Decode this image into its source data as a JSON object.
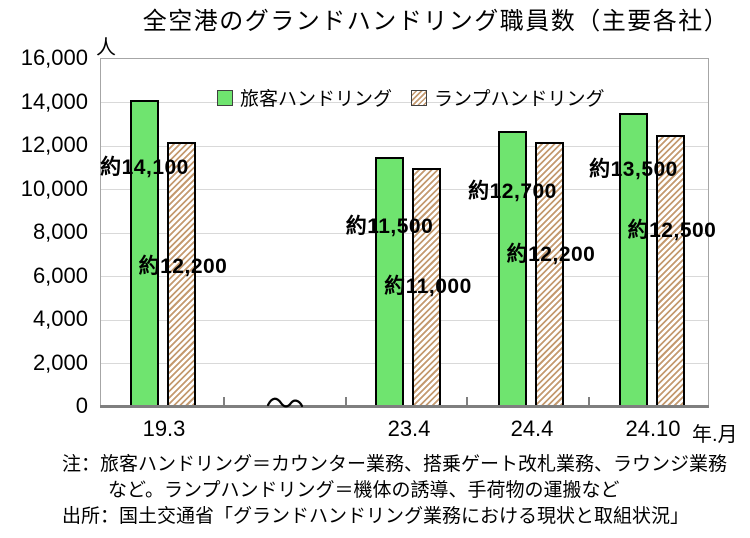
{
  "title": "全空港のグランドハンドリング職員数（主要各社）",
  "y_axis": {
    "unit": "人",
    "tick_labels": [
      "16,000",
      "14,000",
      "12,000",
      "10,000",
      "8,000",
      "6,000",
      "4,000",
      "2,000",
      "0"
    ]
  },
  "x_axis": {
    "unit": "年.月",
    "labels": [
      "19.3",
      "23.4",
      "24.4",
      "24.10"
    ]
  },
  "chart_data": {
    "type": "bar",
    "title": "全空港のグランドハンドリング職員数（主要各社）",
    "categories": [
      "19.3",
      "23.4",
      "24.4",
      "24.10"
    ],
    "x_axis_unit": "年.月",
    "y_axis_unit": "人",
    "ylim": [
      0,
      16000
    ],
    "ytick_step": 2000,
    "grid": true,
    "legend_position": "top-inside",
    "x_axis_break": "wavy break mark on axis between 19.3 and 23.4",
    "series": [
      {
        "name": "旅客ハンドリング",
        "fill": "solid",
        "color": "#6FE46F",
        "values": [
          14100,
          11500,
          12700,
          13500
        ],
        "value_labels": [
          "約14,100",
          "約11,500",
          "約12,700",
          "約13,500"
        ]
      },
      {
        "name": "ランプハンドリング",
        "fill": "diagonal-hatch",
        "hatch_color": "#C49A70",
        "values": [
          12200,
          11000,
          12200,
          12500
        ],
        "value_labels": [
          "約12,200",
          "約11,000",
          "約12,200",
          "約12,500"
        ]
      }
    ]
  },
  "notes": {
    "line1": "注：旅客ハンドリング＝カウンター業務、搭乗ゲート改札業務、ラウンジ業務",
    "line2": "など。ランプハンドリング＝機体の誘導、手荷物の運搬など",
    "line3": "出所：国土交通省「グランドハンドリング業務における現状と取組状況」"
  },
  "colors": {
    "bar_green": "#6FE46F",
    "hatch_tan": "#C49A70",
    "gridline": "#D9D9D9",
    "plot_border": "#A6A6A6",
    "axis": "#7F7F7F",
    "text": "#000000"
  }
}
